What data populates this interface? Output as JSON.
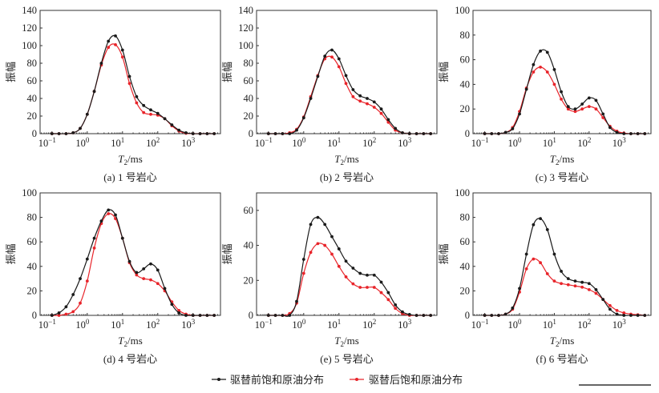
{
  "legend": {
    "before_label": "驱替前饱和原油分布",
    "after_label": "驱替后饱和原油分布",
    "before_color": "#1a1a1a",
    "after_color": "#e8242a"
  },
  "chart_data": [
    {
      "type": "line",
      "caption": "(a) 1 号岩心",
      "ylabel": "振幅",
      "xlabel": "T2/ms",
      "xscale": "log",
      "xlim": [
        0.046,
        6000
      ],
      "ylim": [
        0,
        140
      ],
      "yticks": [
        0,
        20,
        40,
        60,
        80,
        100,
        120,
        140
      ],
      "xticks": [
        "10^-1",
        "10^0",
        "10^1",
        "10^2",
        "10^3"
      ],
      "grid": false,
      "x": [
        0.1,
        0.158,
        0.251,
        0.398,
        0.631,
        1,
        1.58,
        2.51,
        3.98,
        6.31,
        10,
        15.8,
        25.1,
        39.8,
        63.1,
        100,
        158,
        251,
        398,
        631,
        1000,
        1585,
        2512,
        3981
      ],
      "series": [
        {
          "name": "驱替前饱和原油分布",
          "values": [
            0,
            0,
            0,
            1,
            6,
            22,
            48,
            80,
            105,
            111,
            95,
            65,
            42,
            32,
            27,
            23,
            17,
            10,
            4,
            1,
            0,
            0,
            0,
            0
          ]
        },
        {
          "name": "驱替后饱和原油分布",
          "values": [
            0,
            0,
            0,
            1,
            6,
            22,
            48,
            78,
            98,
            101,
            87,
            57,
            35,
            24,
            22,
            21,
            17,
            9,
            3,
            0.5,
            0,
            0,
            0,
            0
          ]
        }
      ]
    },
    {
      "type": "line",
      "caption": "(b) 2 号岩心",
      "ylabel": "振幅",
      "xlabel": "T2/ms",
      "xscale": "log",
      "xlim": [
        0.046,
        6000
      ],
      "ylim": [
        0,
        140
      ],
      "yticks": [
        0,
        20,
        40,
        60,
        80,
        100,
        120,
        140
      ],
      "xticks": [
        "10^-1",
        "10^0",
        "10^1",
        "10^2",
        "10^3"
      ],
      "grid": false,
      "x": [
        0.1,
        0.158,
        0.251,
        0.398,
        0.631,
        1,
        1.58,
        2.51,
        3.98,
        6.31,
        10,
        15.8,
        25.1,
        39.8,
        63.1,
        100,
        158,
        251,
        398,
        631,
        1000,
        1585,
        2512,
        3981
      ],
      "series": [
        {
          "name": "驱替前饱和原油分布",
          "values": [
            0,
            0,
            0,
            0,
            4,
            18,
            40,
            65,
            88,
            95,
            85,
            66,
            50,
            43,
            40,
            36,
            28,
            16,
            6,
            1,
            0,
            0,
            0,
            0
          ]
        },
        {
          "name": "驱替后饱和原油分布",
          "values": [
            0,
            0,
            0,
            1,
            5,
            19,
            42,
            66,
            85,
            87,
            76,
            57,
            42,
            37,
            34,
            30,
            23,
            13,
            4,
            1,
            0,
            0,
            0,
            0
          ]
        }
      ]
    },
    {
      "type": "line",
      "caption": "(c) 3 号岩心",
      "ylabel": "振幅",
      "xlabel": "T2/ms",
      "xscale": "log",
      "xlim": [
        0.046,
        6000
      ],
      "ylim": [
        0,
        100
      ],
      "yticks": [
        0,
        20,
        40,
        60,
        80,
        100
      ],
      "xticks": [
        "10^-1",
        "10^0",
        "10^1",
        "10^2",
        "10^3"
      ],
      "grid": false,
      "x": [
        0.1,
        0.158,
        0.251,
        0.398,
        0.631,
        1,
        1.58,
        2.51,
        3.98,
        6.31,
        10,
        15.8,
        25.1,
        39.8,
        63.1,
        100,
        158,
        251,
        398,
        631,
        1000,
        1585,
        2512,
        3981
      ],
      "series": [
        {
          "name": "驱替前饱和原油分布",
          "values": [
            0,
            0,
            0,
            1,
            4,
            16,
            36,
            56,
            67,
            66,
            52,
            34,
            22,
            20,
            24,
            29,
            27,
            16,
            5,
            1,
            0,
            0,
            0,
            0
          ]
        },
        {
          "name": "驱替后饱和原油分布",
          "values": [
            0,
            0,
            0,
            1,
            5,
            18,
            37,
            50,
            54,
            50,
            40,
            28,
            20,
            18,
            20,
            22,
            20,
            13,
            6,
            2,
            0.5,
            0,
            0,
            0
          ]
        }
      ]
    },
    {
      "type": "line",
      "caption": "(d) 4 号岩心",
      "ylabel": "振幅",
      "xlabel": "T2/ms",
      "xscale": "log",
      "xlim": [
        0.046,
        6000
      ],
      "ylim": [
        0,
        100
      ],
      "yticks": [
        0,
        20,
        40,
        60,
        80,
        100
      ],
      "xticks": [
        "10^-1",
        "10^0",
        "10^1",
        "10^2",
        "10^3"
      ],
      "grid": false,
      "x": [
        0.1,
        0.158,
        0.251,
        0.398,
        0.631,
        1,
        1.58,
        2.51,
        3.98,
        6.31,
        10,
        15.8,
        25.1,
        39.8,
        63.1,
        100,
        158,
        251,
        398,
        631,
        1000,
        1585,
        2512,
        3981
      ],
      "series": [
        {
          "name": "驱替前饱和原油分布",
          "values": [
            0,
            2,
            7,
            17,
            30,
            46,
            63,
            77,
            86,
            82,
            63,
            44,
            35,
            38,
            42,
            37,
            22,
            9,
            2,
            0,
            0,
            0,
            0,
            0
          ]
        },
        {
          "name": "驱替后饱和原油分布",
          "values": [
            0,
            0,
            1,
            3,
            10,
            28,
            55,
            75,
            83,
            79,
            63,
            43,
            33,
            30,
            29,
            26,
            20,
            11,
            4,
            1,
            0,
            0,
            0,
            0
          ]
        }
      ]
    },
    {
      "type": "line",
      "caption": "(e) 5 号岩心",
      "ylabel": "振幅",
      "xlabel": "T2/ms",
      "xscale": "log",
      "xlim": [
        0.046,
        6000
      ],
      "ylim": [
        0,
        70
      ],
      "yticks": [
        0,
        20,
        40,
        60
      ],
      "xticks": [
        "10^-1",
        "10^0",
        "10^1",
        "10^2",
        "10^3"
      ],
      "grid": false,
      "x": [
        0.1,
        0.158,
        0.251,
        0.398,
        0.631,
        1,
        1.58,
        2.51,
        3.98,
        6.31,
        10,
        15.8,
        25.1,
        39.8,
        63.1,
        100,
        158,
        251,
        398,
        631,
        1000,
        1585,
        2512,
        3981
      ],
      "series": [
        {
          "name": "驱替前饱和原油分布",
          "values": [
            0,
            0,
            0,
            0,
            8,
            32,
            52,
            56,
            52,
            45,
            38,
            31,
            27,
            24,
            23,
            23,
            19,
            13,
            6,
            2,
            0.5,
            0,
            0,
            0
          ]
        },
        {
          "name": "驱替后饱和原油分布",
          "values": [
            0,
            0,
            0,
            1,
            7,
            24,
            36,
            41,
            40,
            35,
            28,
            22,
            18,
            16,
            16,
            16,
            13,
            9,
            4,
            1,
            0,
            0,
            0,
            0
          ]
        }
      ]
    },
    {
      "type": "line",
      "caption": "(f) 6 号岩心",
      "ylabel": "振幅",
      "xlabel": "T2/ms",
      "xscale": "log",
      "xlim": [
        0.046,
        6000
      ],
      "ylim": [
        0,
        100
      ],
      "yticks": [
        0,
        20,
        40,
        60,
        80,
        100
      ],
      "xticks": [
        "10^-1",
        "10^0",
        "10^1",
        "10^2",
        "10^3"
      ],
      "grid": false,
      "x": [
        0.1,
        0.158,
        0.251,
        0.398,
        0.631,
        1,
        1.58,
        2.51,
        3.98,
        6.31,
        10,
        15.8,
        25.1,
        39.8,
        63.1,
        100,
        158,
        251,
        398,
        631,
        1000,
        1585,
        2512,
        3981
      ],
      "series": [
        {
          "name": "驱替前饱和原油分布",
          "values": [
            0,
            0,
            0,
            1,
            6,
            22,
            50,
            74,
            79,
            70,
            50,
            36,
            30,
            28,
            27,
            26,
            21,
            13,
            5,
            1,
            0,
            0,
            0,
            0
          ]
        },
        {
          "name": "驱替后饱和原油分布",
          "values": [
            0,
            0,
            0,
            1,
            5,
            19,
            38,
            46,
            43,
            34,
            28,
            26,
            25,
            24,
            23,
            21,
            18,
            13,
            8,
            4,
            2,
            1,
            0.5,
            0
          ]
        }
      ]
    }
  ]
}
